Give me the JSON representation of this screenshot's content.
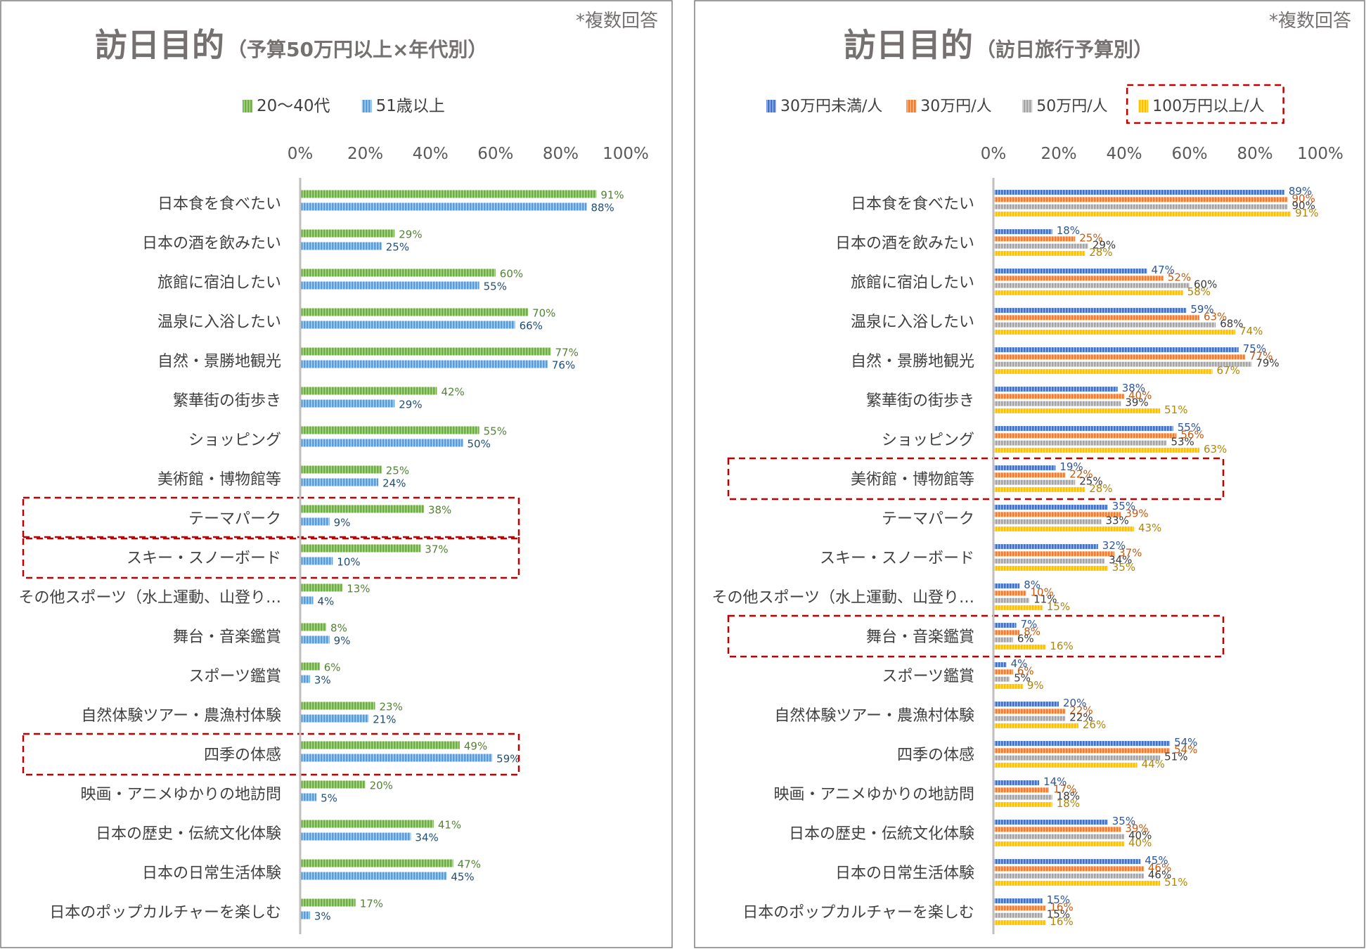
{
  "colors": {
    "green": "#70ad47",
    "lightblue": "#5b9bd5",
    "blue": "#4472c4",
    "orange": "#ed7d31",
    "gray": "#a5a5a5",
    "yellow": "#ffc000",
    "highlight": "#c00000",
    "title": "#767171"
  },
  "chart_data": [
    {
      "type": "bar",
      "orientation": "horizontal",
      "title": "訪日目的",
      "subtitle": "（予算50万円以上×年代別）",
      "note": "*複数回答",
      "axis_ticks": [
        "0%",
        "20%",
        "40%",
        "60%",
        "80%",
        "100%"
      ],
      "xlim": [
        0,
        100
      ],
      "categories": [
        "日本食を食べたい",
        "日本の酒を飲みたい",
        "旅館に宿泊したい",
        "温泉に入浴したい",
        "自然・景勝地観光",
        "繁華街の街歩き",
        "ショッピング",
        "美術館・博物館等",
        "テーマパーク",
        "スキー・スノーボード",
        "その他スポーツ（水上運動、山登り…",
        "舞台・音楽鑑賞",
        "スポーツ鑑賞",
        "自然体験ツアー・農漁村体験",
        "四季の体感",
        "映画・アニメゆかりの地訪問",
        "日本の歴史・伝統文化体験",
        "日本の日常生活体験",
        "日本のポップカルチャーを楽しむ"
      ],
      "series": [
        {
          "name": "20～40代",
          "values": [
            91,
            29,
            60,
            70,
            77,
            42,
            55,
            25,
            38,
            37,
            13,
            8,
            6,
            23,
            49,
            20,
            41,
            47,
            17
          ]
        },
        {
          "name": "51歳以上",
          "values": [
            88,
            25,
            55,
            66,
            76,
            29,
            50,
            24,
            9,
            10,
            4,
            9,
            3,
            21,
            59,
            5,
            34,
            45,
            3
          ]
        }
      ],
      "highlight_categories": [
        "テーマパーク",
        "スキー・スノーボード",
        "四季の体感"
      ]
    },
    {
      "type": "bar",
      "orientation": "horizontal",
      "title": "訪日目的",
      "subtitle": "（訪日旅行予算別）",
      "note": "*複数回答",
      "axis_ticks": [
        "0%",
        "20%",
        "40%",
        "60%",
        "80%",
        "100%"
      ],
      "xlim": [
        0,
        100
      ],
      "categories": [
        "日本食を食べたい",
        "日本の酒を飲みたい",
        "旅館に宿泊したい",
        "温泉に入浴したい",
        "自然・景勝地観光",
        "繁華街の街歩き",
        "ショッピング",
        "美術館・博物館等",
        "テーマパーク",
        "スキー・スノーボード",
        "その他スポーツ（水上運動、山登り…",
        "舞台・音楽鑑賞",
        "スポーツ鑑賞",
        "自然体験ツアー・農漁村体験",
        "四季の体感",
        "映画・アニメゆかりの地訪問",
        "日本の歴史・伝統文化体験",
        "日本の日常生活体験",
        "日本のポップカルチャーを楽しむ"
      ],
      "series": [
        {
          "name": "30万円未満/人",
          "values": [
            89,
            18,
            47,
            59,
            75,
            38,
            55,
            19,
            35,
            32,
            8,
            7,
            4,
            20,
            54,
            14,
            35,
            45,
            15
          ]
        },
        {
          "name": "30万円/人",
          "values": [
            90,
            25,
            52,
            63,
            77,
            40,
            56,
            22,
            39,
            37,
            10,
            8,
            6,
            22,
            54,
            17,
            39,
            46,
            16
          ]
        },
        {
          "name": "50万円/人",
          "values": [
            90,
            29,
            60,
            68,
            79,
            39,
            53,
            25,
            33,
            34,
            11,
            6,
            5,
            22,
            51,
            18,
            40,
            46,
            15
          ]
        },
        {
          "name": "100万円以上/人",
          "values": [
            91,
            28,
            58,
            74,
            67,
            51,
            63,
            28,
            43,
            35,
            15,
            16,
            9,
            26,
            44,
            18,
            40,
            51,
            16
          ]
        }
      ],
      "highlight_categories": [
        "美術館・博物館等",
        "舞台・音楽鑑賞"
      ],
      "highlight_legend": "100万円以上/人"
    }
  ]
}
